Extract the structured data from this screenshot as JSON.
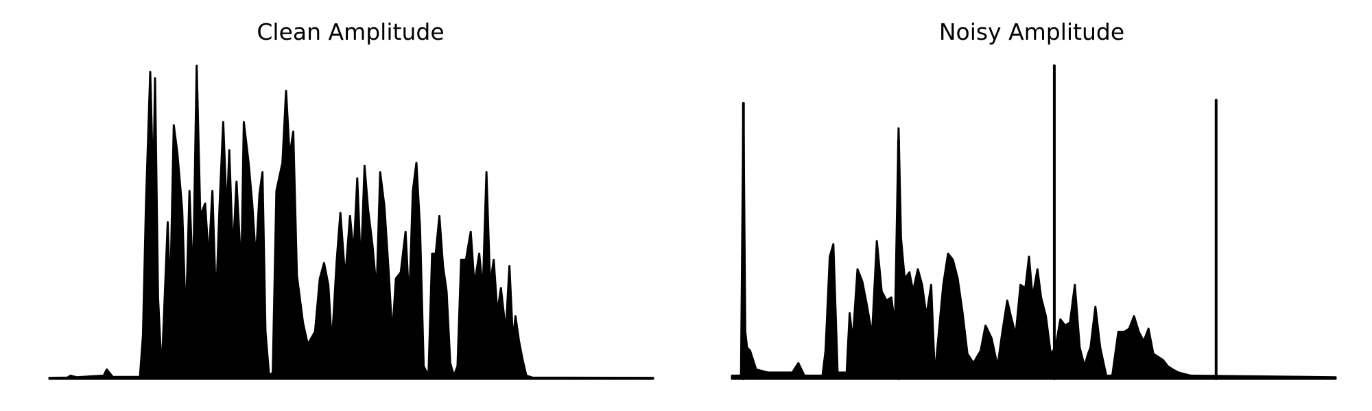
{
  "figure": {
    "line_color": "#000000",
    "background": "#ffffff"
  },
  "chart_data": [
    {
      "type": "area",
      "title": "Clean Amplitude",
      "xlabel": "",
      "ylabel": "",
      "axes_visible": false,
      "grid": false,
      "xlim": [
        0,
        1
      ],
      "ylim": [
        0,
        1.0
      ],
      "envelope": [
        [
          0.0,
          0.003
        ],
        [
          0.03,
          0.004
        ],
        [
          0.035,
          0.01
        ],
        [
          0.045,
          0.005
        ],
        [
          0.09,
          0.01
        ],
        [
          0.095,
          0.03
        ],
        [
          0.105,
          0.006
        ],
        [
          0.15,
          0.006
        ],
        [
          0.155,
          0.14
        ],
        [
          0.16,
          0.56
        ],
        [
          0.167,
          0.98
        ],
        [
          0.172,
          0.6
        ],
        [
          0.175,
          0.96
        ],
        [
          0.18,
          0.26
        ],
        [
          0.186,
          0.02
        ],
        [
          0.192,
          0.31
        ],
        [
          0.196,
          0.5
        ],
        [
          0.2,
          0.25
        ],
        [
          0.206,
          0.81
        ],
        [
          0.212,
          0.72
        ],
        [
          0.22,
          0.54
        ],
        [
          0.226,
          0.18
        ],
        [
          0.232,
          0.6
        ],
        [
          0.238,
          0.3
        ],
        [
          0.244,
          1.0
        ],
        [
          0.25,
          0.52
        ],
        [
          0.258,
          0.56
        ],
        [
          0.264,
          0.38
        ],
        [
          0.27,
          0.6
        ],
        [
          0.276,
          0.24
        ],
        [
          0.282,
          0.56
        ],
        [
          0.288,
          0.82
        ],
        [
          0.294,
          0.52
        ],
        [
          0.298,
          0.73
        ],
        [
          0.304,
          0.4
        ],
        [
          0.31,
          0.63
        ],
        [
          0.318,
          0.34
        ],
        [
          0.322,
          0.82
        ],
        [
          0.33,
          0.69
        ],
        [
          0.336,
          0.56
        ],
        [
          0.342,
          0.38
        ],
        [
          0.348,
          0.59
        ],
        [
          0.353,
          0.66
        ],
        [
          0.358,
          0.15
        ],
        [
          0.364,
          0.01
        ],
        [
          0.37,
          0.02
        ],
        [
          0.376,
          0.6
        ],
        [
          0.386,
          0.69
        ],
        [
          0.392,
          0.92
        ],
        [
          0.398,
          0.71
        ],
        [
          0.404,
          0.79
        ],
        [
          0.41,
          0.33
        ],
        [
          0.42,
          0.18
        ],
        [
          0.428,
          0.11
        ],
        [
          0.44,
          0.15
        ],
        [
          0.448,
          0.32
        ],
        [
          0.455,
          0.37
        ],
        [
          0.462,
          0.3
        ],
        [
          0.468,
          0.11
        ],
        [
          0.476,
          0.38
        ],
        [
          0.482,
          0.53
        ],
        [
          0.49,
          0.32
        ],
        [
          0.498,
          0.52
        ],
        [
          0.504,
          0.4
        ],
        [
          0.51,
          0.64
        ],
        [
          0.516,
          0.35
        ],
        [
          0.522,
          0.68
        ],
        [
          0.528,
          0.54
        ],
        [
          0.535,
          0.43
        ],
        [
          0.542,
          0.28
        ],
        [
          0.548,
          0.66
        ],
        [
          0.555,
          0.55
        ],
        [
          0.562,
          0.34
        ],
        [
          0.568,
          0.14
        ],
        [
          0.574,
          0.32
        ],
        [
          0.582,
          0.34
        ],
        [
          0.59,
          0.47
        ],
        [
          0.596,
          0.24
        ],
        [
          0.602,
          0.6
        ],
        [
          0.608,
          0.69
        ],
        [
          0.614,
          0.48
        ],
        [
          0.62,
          0.04
        ],
        [
          0.628,
          0.01
        ],
        [
          0.634,
          0.4
        ],
        [
          0.64,
          0.4
        ],
        [
          0.646,
          0.52
        ],
        [
          0.652,
          0.36
        ],
        [
          0.658,
          0.28
        ],
        [
          0.664,
          0.05
        ],
        [
          0.67,
          0.01
        ],
        [
          0.676,
          0.04
        ],
        [
          0.682,
          0.38
        ],
        [
          0.69,
          0.38
        ],
        [
          0.698,
          0.47
        ],
        [
          0.704,
          0.3
        ],
        [
          0.712,
          0.4
        ],
        [
          0.718,
          0.28
        ],
        [
          0.724,
          0.66
        ],
        [
          0.73,
          0.3
        ],
        [
          0.736,
          0.38
        ],
        [
          0.742,
          0.21
        ],
        [
          0.748,
          0.29
        ],
        [
          0.756,
          0.15
        ],
        [
          0.762,
          0.36
        ],
        [
          0.768,
          0.12
        ],
        [
          0.772,
          0.2
        ],
        [
          0.778,
          0.12
        ],
        [
          0.784,
          0.06
        ],
        [
          0.79,
          0.01
        ],
        [
          0.8,
          0.004
        ],
        [
          1.0,
          0.003
        ]
      ]
    },
    {
      "type": "area",
      "title": "Noisy Amplitude",
      "xlabel": "",
      "ylabel": "",
      "axes_visible": false,
      "grid": false,
      "xlim": [
        0,
        1
      ],
      "ylim": [
        0,
        1.0
      ],
      "envelope": [
        [
          0.0,
          0.01
        ],
        [
          0.015,
          0.01
        ],
        [
          0.019,
          0.88
        ],
        [
          0.022,
          0.15
        ],
        [
          0.025,
          0.1
        ],
        [
          0.03,
          0.09
        ],
        [
          0.04,
          0.03
        ],
        [
          0.06,
          0.02
        ],
        [
          0.1,
          0.02
        ],
        [
          0.11,
          0.05
        ],
        [
          0.12,
          0.01
        ],
        [
          0.15,
          0.01
        ],
        [
          0.155,
          0.09
        ],
        [
          0.162,
          0.39
        ],
        [
          0.168,
          0.43
        ],
        [
          0.175,
          0.02
        ],
        [
          0.19,
          0.02
        ],
        [
          0.195,
          0.21
        ],
        [
          0.2,
          0.12
        ],
        [
          0.208,
          0.35
        ],
        [
          0.216,
          0.31
        ],
        [
          0.224,
          0.23
        ],
        [
          0.232,
          0.14
        ],
        [
          0.24,
          0.44
        ],
        [
          0.248,
          0.28
        ],
        [
          0.256,
          0.25
        ],
        [
          0.264,
          0.26
        ],
        [
          0.27,
          0.17
        ],
        [
          0.276,
          0.8
        ],
        [
          0.28,
          0.45
        ],
        [
          0.286,
          0.32
        ],
        [
          0.294,
          0.34
        ],
        [
          0.3,
          0.28
        ],
        [
          0.308,
          0.35
        ],
        [
          0.315,
          0.3
        ],
        [
          0.322,
          0.2
        ],
        [
          0.33,
          0.3
        ],
        [
          0.336,
          0.01
        ],
        [
          0.35,
          0.3
        ],
        [
          0.358,
          0.4
        ],
        [
          0.366,
          0.38
        ],
        [
          0.374,
          0.32
        ],
        [
          0.382,
          0.21
        ],
        [
          0.39,
          0.08
        ],
        [
          0.4,
          0.05
        ],
        [
          0.412,
          0.09
        ],
        [
          0.42,
          0.17
        ],
        [
          0.43,
          0.13
        ],
        [
          0.44,
          0.04
        ],
        [
          0.448,
          0.15
        ],
        [
          0.456,
          0.25
        ],
        [
          0.462,
          0.2
        ],
        [
          0.47,
          0.14
        ],
        [
          0.478,
          0.3
        ],
        [
          0.486,
          0.29
        ],
        [
          0.492,
          0.39
        ],
        [
          0.498,
          0.26
        ],
        [
          0.506,
          0.35
        ],
        [
          0.512,
          0.26
        ],
        [
          0.52,
          0.2
        ],
        [
          0.528,
          0.08
        ],
        [
          0.536,
          0.1
        ],
        [
          0.544,
          0.19
        ],
        [
          0.552,
          0.17
        ],
        [
          0.56,
          0.18
        ],
        [
          0.568,
          0.3
        ],
        [
          0.576,
          0.1
        ],
        [
          0.584,
          0.04
        ],
        [
          0.59,
          0.08
        ],
        [
          0.594,
          0.1
        ],
        [
          0.602,
          0.23
        ],
        [
          0.61,
          0.1
        ],
        [
          0.62,
          0.01
        ],
        [
          0.63,
          0.01
        ],
        [
          0.64,
          0.15
        ],
        [
          0.65,
          0.15
        ],
        [
          0.658,
          0.16
        ],
        [
          0.666,
          0.2
        ],
        [
          0.674,
          0.15
        ],
        [
          0.682,
          0.12
        ],
        [
          0.69,
          0.16
        ],
        [
          0.698,
          0.08
        ],
        [
          0.706,
          0.07
        ],
        [
          0.714,
          0.06
        ],
        [
          0.722,
          0.04
        ],
        [
          0.73,
          0.03
        ],
        [
          0.74,
          0.02
        ],
        [
          0.76,
          0.01
        ],
        [
          1.0,
          0.005
        ]
      ],
      "spikes": [
        {
          "x": 0.019,
          "y": 0.88
        },
        {
          "x": 0.276,
          "y": 0.76
        },
        {
          "x": 0.534,
          "y": 1.0
        },
        {
          "x": 0.802,
          "y": 0.89
        }
      ]
    }
  ]
}
